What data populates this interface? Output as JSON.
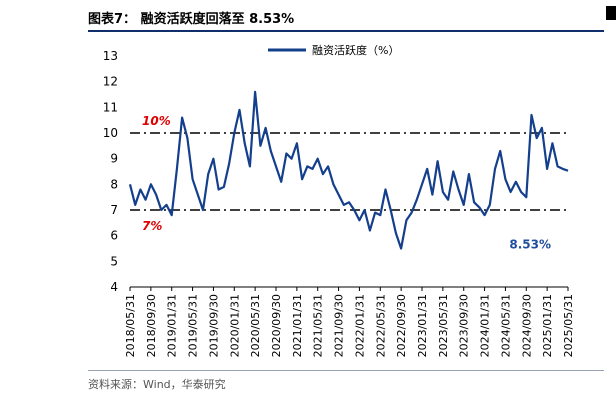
{
  "header": {
    "title": "图表7： 融资活跃度回落至 8.53%"
  },
  "footer": {
    "source": "资料来源：Wind，华泰研究"
  },
  "chart_data": {
    "type": "line",
    "series": [
      {
        "name": "融资活跃度（%）",
        "color": "#143f8c",
        "x": [
          "2018/05/31",
          "2018/06/30",
          "2018/07/31",
          "2018/08/31",
          "2018/09/30",
          "2018/10/31",
          "2018/11/30",
          "2018/12/31",
          "2019/01/31",
          "2019/02/28",
          "2019/03/31",
          "2019/04/30",
          "2019/05/31",
          "2019/06/30",
          "2019/07/31",
          "2019/08/31",
          "2019/09/30",
          "2019/10/31",
          "2019/11/30",
          "2019/12/31",
          "2020/01/31",
          "2020/02/29",
          "2020/03/31",
          "2020/04/30",
          "2020/05/31",
          "2020/06/30",
          "2020/07/31",
          "2020/08/31",
          "2020/09/30",
          "2020/10/31",
          "2020/11/30",
          "2020/12/31",
          "2021/01/31",
          "2021/02/28",
          "2021/03/31",
          "2021/04/30",
          "2021/05/31",
          "2021/06/30",
          "2021/07/31",
          "2021/08/31",
          "2021/09/30",
          "2021/10/31",
          "2021/11/30",
          "2021/12/31",
          "2022/01/31",
          "2022/02/28",
          "2022/03/31",
          "2022/04/30",
          "2022/05/31",
          "2022/06/30",
          "2022/07/31",
          "2022/08/31",
          "2022/09/30",
          "2022/10/31",
          "2022/11/30",
          "2022/12/31",
          "2023/01/31",
          "2023/02/28",
          "2023/03/31",
          "2023/04/30",
          "2023/05/31",
          "2023/06/30",
          "2023/07/31",
          "2023/08/31",
          "2023/09/30",
          "2023/10/31",
          "2023/11/30",
          "2023/12/31",
          "2024/01/31",
          "2024/02/29",
          "2024/03/31",
          "2024/04/30",
          "2024/05/31",
          "2024/06/30",
          "2024/07/31",
          "2024/08/31",
          "2024/09/30",
          "2024/10/31",
          "2024/11/30",
          "2024/12/31",
          "2025/01/31",
          "2025/02/28",
          "2025/03/31",
          "2025/04/30",
          "2025/05/31"
        ],
        "values": [
          8.0,
          7.2,
          7.8,
          7.4,
          8.0,
          7.6,
          7.0,
          7.2,
          6.8,
          8.6,
          10.6,
          9.8,
          8.2,
          7.6,
          7.0,
          8.4,
          9.0,
          7.8,
          7.9,
          8.8,
          10.0,
          10.9,
          9.6,
          8.7,
          11.6,
          9.5,
          10.2,
          9.3,
          8.7,
          8.1,
          9.2,
          9.0,
          9.6,
          8.2,
          8.7,
          8.6,
          9.0,
          8.4,
          8.7,
          8.0,
          7.6,
          7.2,
          7.3,
          7.0,
          6.6,
          7.0,
          6.2,
          6.9,
          6.8,
          7.8,
          7.0,
          6.1,
          5.5,
          6.6,
          6.9,
          7.4,
          8.0,
          8.6,
          7.6,
          8.9,
          7.7,
          7.4,
          8.5,
          7.8,
          7.2,
          8.4,
          7.3,
          7.1,
          6.8,
          7.2,
          8.6,
          9.3,
          8.2,
          7.7,
          8.1,
          7.7,
          7.5,
          10.7,
          9.8,
          10.2,
          8.6,
          9.6,
          8.7,
          8.6,
          8.53
        ]
      }
    ],
    "reference_lines": [
      {
        "value": 10,
        "label": "10%"
      },
      {
        "value": 7,
        "label": "7%"
      }
    ],
    "annotations": [
      {
        "text": "8.53%"
      }
    ],
    "x_ticks": [
      "2018/05/31",
      "2018/09/30",
      "2019/01/31",
      "2019/05/31",
      "2019/09/30",
      "2020/01/31",
      "2020/05/31",
      "2020/09/30",
      "2021/01/31",
      "2021/05/31",
      "2021/09/30",
      "2022/01/31",
      "2022/05/31",
      "2022/09/30",
      "2023/01/31",
      "2023/05/31",
      "2023/09/30",
      "2024/01/31",
      "2024/05/31",
      "2024/09/30",
      "2025/01/31",
      "2025/05/31"
    ],
    "y_ticks": [
      "4",
      "5",
      "6",
      "7",
      "8",
      "9",
      "10",
      "11",
      "12",
      "13"
    ],
    "ylim": [
      4,
      13
    ],
    "xlabel": "",
    "ylabel": "",
    "grid": false,
    "legend": "top-center"
  }
}
